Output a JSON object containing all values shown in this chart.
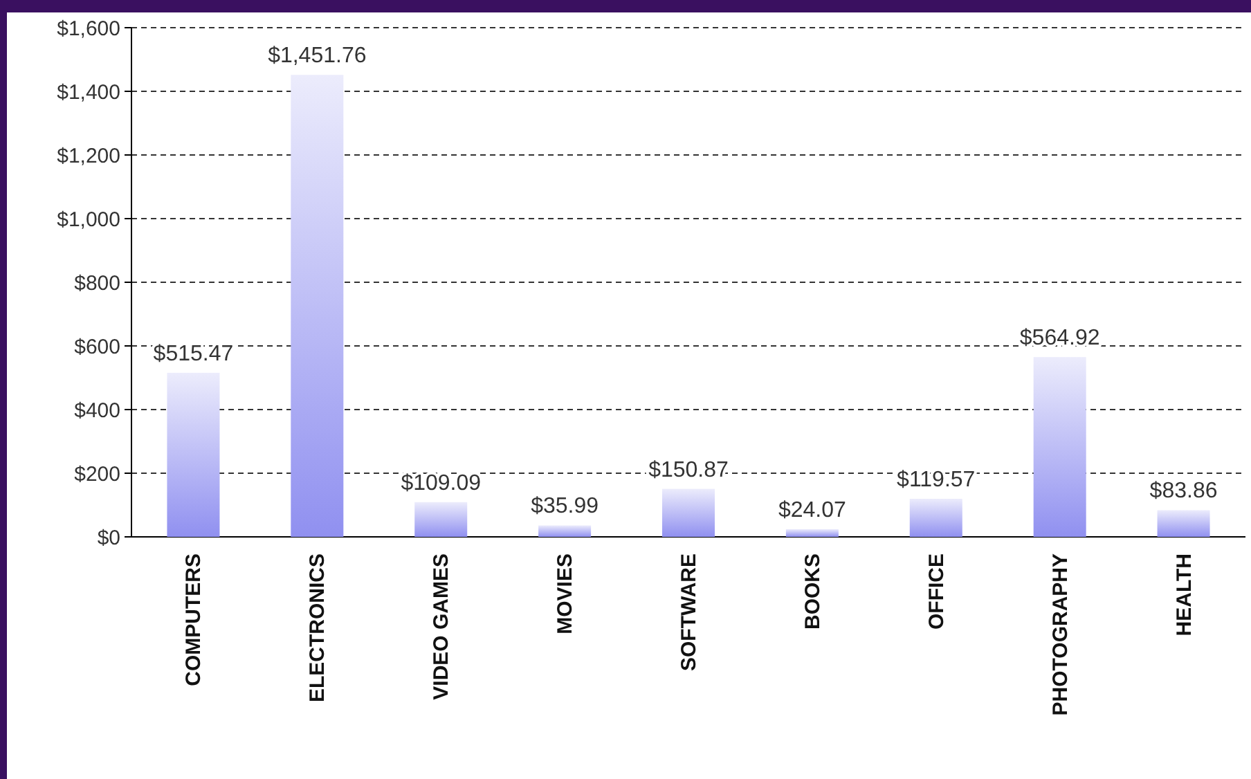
{
  "chart_data": {
    "type": "bar",
    "categories": [
      "COMPUTERS",
      "ELECTRONICS",
      "VIDEO GAMES",
      "MOVIES",
      "SOFTWARE",
      "BOOKS",
      "OFFICE",
      "PHOTOGRAPHY",
      "HEALTH"
    ],
    "values": [
      515.47,
      1451.76,
      109.09,
      35.99,
      150.87,
      24.07,
      119.57,
      564.92,
      83.86
    ],
    "value_labels": [
      "$515.47",
      "$1,451.76",
      "$109.09",
      "$35.99",
      "$150.87",
      "$24.07",
      "$119.57",
      "$564.92",
      "$83.86"
    ],
    "color": "#9090f0",
    "ylim": [
      0,
      1600
    ],
    "yticks": [
      {
        "value": 0,
        "label": "$0"
      },
      {
        "value": 200,
        "label": "$200"
      },
      {
        "value": 400,
        "label": "$400"
      },
      {
        "value": 600,
        "label": "$600"
      },
      {
        "value": 800,
        "label": "$800"
      },
      {
        "value": 1000,
        "label": "$1,000"
      },
      {
        "value": 1200,
        "label": "$1,200"
      },
      {
        "value": 1400,
        "label": "$1,400"
      },
      {
        "value": 1600,
        "label": "$1,600"
      }
    ],
    "grid": "y"
  }
}
